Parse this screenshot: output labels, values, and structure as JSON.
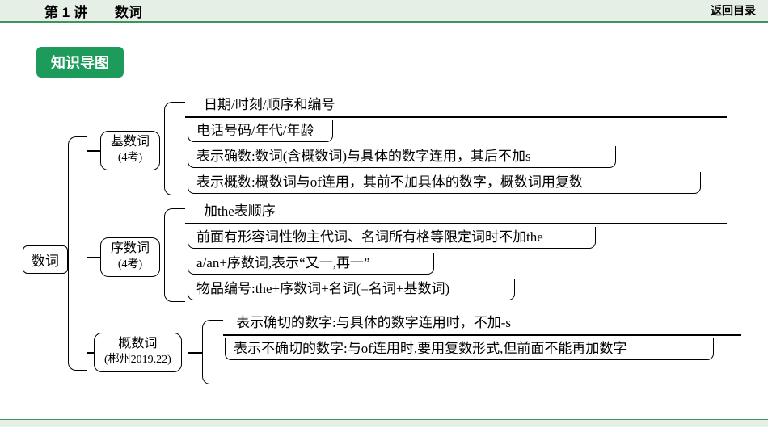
{
  "header": {
    "title": "第 1 讲　　数词",
    "back": "返回目录"
  },
  "section_label": "知识导图",
  "root": "数词",
  "cat1": {
    "name": "基数词",
    "sub": "(4考)"
  },
  "cat2": {
    "name": "序数词",
    "sub": "(4考)"
  },
  "cat3": {
    "name": "概数词",
    "sub": "(郴州2019.22)"
  },
  "leaves": {
    "g1": {
      "a": "日期/时刻/顺序和编号",
      "b": "电话号码/年代/年龄",
      "c": "表示确数:数词(含概数词)与具体的数字连用，其后不加s",
      "d": "表示概数:概数词与of连用，其前不加具体的数字，概数词用复数"
    },
    "g2": {
      "a": "加the表顺序",
      "b": "前面有形容词性物主代词、名词所有格等限定词时不加the",
      "c": "a/an+序数词,表示“又一,再一”",
      "d": "物品编号:the+序数词+名词(=名词+基数词)"
    },
    "g3": {
      "a": "表示确切的数字:与具体的数字连用时，不加-s",
      "b": "表示不确切的数字:与of连用时,要用复数形式,但前面不能再加数字"
    }
  }
}
